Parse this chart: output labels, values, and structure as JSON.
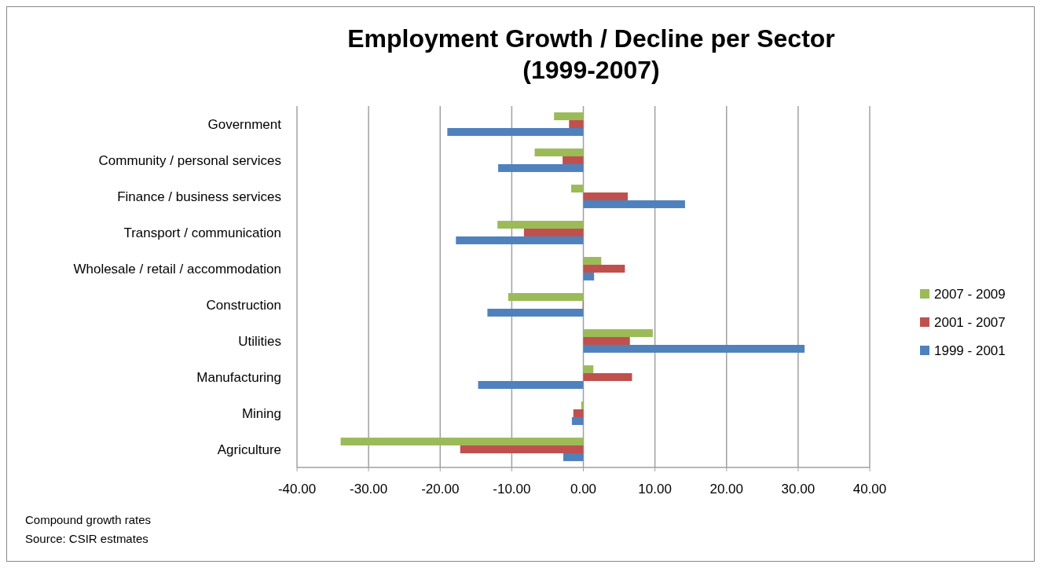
{
  "chart_data": {
    "type": "bar",
    "orientation": "horizontal",
    "title": "Employment Growth / Decline per Sector\n(1999-2007)",
    "categories": [
      "Government",
      "Community / personal services",
      "Finance / business services",
      "Transport / communication",
      "Wholesale / retail / accommodation",
      "Construction",
      "Utilities",
      "Manufacturing",
      "Mining",
      "Agriculture"
    ],
    "series": [
      {
        "name": "2007 - 2009",
        "color": "#9bbb59",
        "values": [
          -4.1,
          -6.8,
          -1.7,
          -12.0,
          2.5,
          -10.5,
          9.7,
          1.4,
          -0.3,
          -33.9
        ]
      },
      {
        "name": "2001 - 2007",
        "color": "#c0504d",
        "values": [
          -2.0,
          -2.9,
          6.2,
          -8.3,
          5.8,
          -0.1,
          6.5,
          6.8,
          -1.4,
          -17.2
        ]
      },
      {
        "name": "1999 - 2001",
        "color": "#4f81bd",
        "values": [
          -19.0,
          -11.9,
          14.2,
          -17.8,
          1.5,
          -13.4,
          30.9,
          -14.7,
          -1.6,
          -2.8
        ]
      }
    ],
    "xlim": [
      -40,
      40
    ],
    "xticks": [
      {
        "value": -40,
        "label": "-40.00"
      },
      {
        "value": -30,
        "label": "-30.00"
      },
      {
        "value": -20,
        "label": "-20.00"
      },
      {
        "value": -10,
        "label": "-10.00"
      },
      {
        "value": 0,
        "label": "0.00"
      },
      {
        "value": 10,
        "label": "10.00"
      },
      {
        "value": 20,
        "label": "20.00"
      },
      {
        "value": 30,
        "label": "30.00"
      },
      {
        "value": 40,
        "label": "40.00"
      }
    ],
    "grid": "x",
    "legend": "right",
    "annotations": [
      "Compound growth rates",
      "Source: CSIR estmates"
    ]
  }
}
